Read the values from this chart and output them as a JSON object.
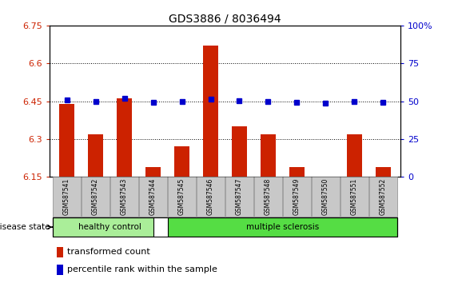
{
  "title": "GDS3886 / 8036494",
  "samples": [
    "GSM587541",
    "GSM587542",
    "GSM587543",
    "GSM587544",
    "GSM587545",
    "GSM587546",
    "GSM587547",
    "GSM587548",
    "GSM587549",
    "GSM587550",
    "GSM587551",
    "GSM587552"
  ],
  "bar_values": [
    6.44,
    6.32,
    6.46,
    6.19,
    6.27,
    6.67,
    6.35,
    6.32,
    6.19,
    6.14,
    6.32,
    6.19
  ],
  "percentile_values": [
    6.455,
    6.448,
    6.462,
    6.447,
    6.448,
    6.458,
    6.451,
    6.45,
    6.445,
    6.443,
    6.448,
    6.447
  ],
  "ymin": 6.15,
  "ymax": 6.75,
  "yticks": [
    6.15,
    6.3,
    6.45,
    6.6,
    6.75
  ],
  "ytick_labels": [
    "6.15",
    "6.3",
    "6.45",
    "6.6",
    "6.75"
  ],
  "y2min": 0,
  "y2max": 100,
  "y2ticks": [
    0,
    25,
    50,
    75,
    100
  ],
  "y2tick_labels": [
    "0",
    "25",
    "50",
    "75",
    "100%"
  ],
  "bar_color": "#cc2200",
  "dot_color": "#0000cc",
  "background_color": "#ffffff",
  "tick_bg_color": "#c8c8c8",
  "healthy_color": "#aaee99",
  "ms_color": "#55dd44",
  "healthy_label": "healthy control",
  "ms_label": "multiple sclerosis",
  "disease_state_label": "disease state",
  "legend_bar_label": "transformed count",
  "legend_dot_label": "percentile rank within the sample",
  "healthy_samples": 4,
  "ms_samples": 8,
  "title_fontsize": 10,
  "axis_label_fontsize": 8,
  "legend_fontsize": 8
}
